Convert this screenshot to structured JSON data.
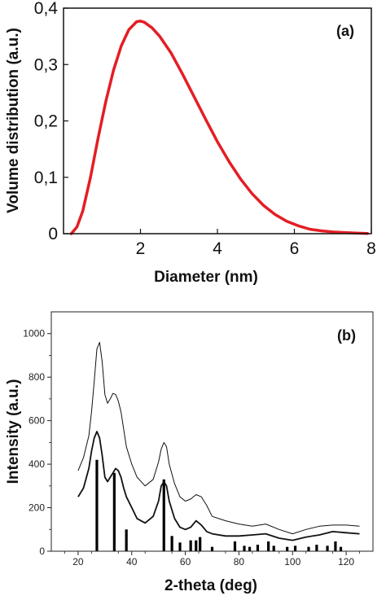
{
  "chart_data": [
    {
      "panel": "(a)",
      "type": "line",
      "xlabel": "Diameter  (nm)",
      "ylabel": "Volume distribution (a.u.)",
      "xlim": [
        0,
        8
      ],
      "ylim": [
        0,
        0.4
      ],
      "x_ticks": [
        "2",
        "4",
        "6",
        "8"
      ],
      "y_ticks": [
        "0",
        "0,1",
        "0,2",
        "0,3",
        "0,4"
      ],
      "color": "#e31e24",
      "series": [
        {
          "x": [
            0.2,
            0.35,
            0.5,
            0.7,
            0.9,
            1.1,
            1.3,
            1.5,
            1.7,
            1.9,
            2.0,
            2.1,
            2.3,
            2.5,
            2.8,
            3.1,
            3.4,
            3.7,
            4.0,
            4.3,
            4.6,
            4.9,
            5.2,
            5.5,
            5.8,
            6.1,
            6.4,
            6.7,
            7.0,
            7.3,
            7.6,
            7.9
          ],
          "y": [
            0.0,
            0.012,
            0.04,
            0.1,
            0.17,
            0.235,
            0.29,
            0.333,
            0.362,
            0.376,
            0.377,
            0.375,
            0.365,
            0.35,
            0.32,
            0.282,
            0.242,
            0.202,
            0.163,
            0.128,
            0.097,
            0.071,
            0.05,
            0.034,
            0.022,
            0.014,
            0.008,
            0.005,
            0.003,
            0.002,
            0.001,
            0.0005
          ]
        }
      ]
    },
    {
      "panel": "(b)",
      "type": "line",
      "xlabel": "2-theta (deg)",
      "ylabel": "Intensity (a.u.)",
      "xlim": [
        10,
        130
      ],
      "ylim": [
        0,
        1100
      ],
      "x_ticks": [
        "20",
        "40",
        "60",
        "80",
        "100",
        "120"
      ],
      "y_ticks": [
        "0",
        "200",
        "400",
        "600",
        "800",
        "1000"
      ],
      "series": [
        {
          "x": [
            20,
            22,
            24,
            25,
            26,
            27,
            28,
            29,
            30,
            31,
            32,
            33,
            34,
            35,
            36,
            37,
            38,
            40,
            42,
            45,
            48,
            50,
            51,
            52,
            53,
            54,
            56,
            58,
            60,
            62,
            64,
            66,
            68,
            70,
            75,
            80,
            85,
            90,
            95,
            100,
            105,
            110,
            115,
            120,
            125
          ],
          "y": [
            370,
            430,
            530,
            640,
            780,
            930,
            960,
            870,
            720,
            680,
            700,
            725,
            720,
            690,
            640,
            560,
            480,
            400,
            340,
            300,
            330,
            410,
            470,
            500,
            480,
            400,
            310,
            250,
            230,
            240,
            260,
            250,
            210,
            160,
            140,
            125,
            115,
            125,
            100,
            80,
            100,
            115,
            120,
            120,
            115
          ]
        },
        {
          "x": [
            20,
            22,
            24,
            25,
            26,
            27,
            28,
            29,
            30,
            31,
            32,
            33,
            34,
            35,
            36,
            37,
            38,
            40,
            42,
            45,
            48,
            50,
            51,
            52,
            53,
            54,
            56,
            58,
            60,
            62,
            64,
            66,
            68,
            70,
            75,
            80,
            85,
            90,
            95,
            100,
            105,
            110,
            115,
            120,
            125
          ],
          "y": [
            250,
            290,
            380,
            460,
            520,
            550,
            520,
            440,
            340,
            320,
            340,
            360,
            380,
            370,
            340,
            290,
            250,
            200,
            150,
            130,
            160,
            230,
            300,
            320,
            300,
            230,
            150,
            110,
            100,
            110,
            140,
            120,
            90,
            80,
            70,
            70,
            75,
            80,
            60,
            50,
            65,
            75,
            90,
            85,
            80
          ]
        }
      ],
      "reference_peaks": {
        "x": [
          27.0,
          33.5,
          38.0,
          52.0,
          55.0,
          58.0,
          62.0,
          64.0,
          65.5,
          70.0,
          78.5,
          82.0,
          84.0,
          87.0,
          91.0,
          93.0,
          98.0,
          101.0,
          106.0,
          109.0,
          113.0,
          116.0,
          118.0
        ],
        "y": [
          420,
          360,
          100,
          330,
          70,
          40,
          50,
          50,
          65,
          20,
          45,
          25,
          20,
          30,
          45,
          25,
          20,
          25,
          20,
          30,
          25,
          45,
          20
        ]
      }
    }
  ],
  "panels": {
    "a_label": "(a)",
    "b_label": "(b)"
  }
}
